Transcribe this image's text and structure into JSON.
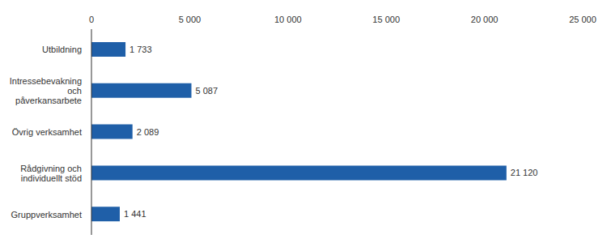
{
  "chart_data": {
    "type": "bar",
    "orientation": "horizontal",
    "categories": [
      "Utbildning",
      "Intressebevakning och påverkansarbete",
      "Övrig verksamhet",
      "Rådgivning och individuellt stöd",
      "Gruppverksamhet"
    ],
    "values": [
      1733,
      5087,
      2089,
      21120,
      1441
    ],
    "value_labels": [
      "1 733",
      "5 087",
      "2 089",
      "21 120",
      "1 441"
    ],
    "data_labels": true,
    "color": "#1f5fa8",
    "xlim": [
      0,
      25000
    ],
    "xticks": [
      0,
      {
        "value": 5000,
        "label": "5 000"
      },
      {
        "value": 10000,
        "label": "10 000"
      },
      {
        "value": 15000,
        "label": "15 000"
      },
      {
        "value": 20000,
        "label": "20 000"
      },
      {
        "value": 25000,
        "label": "25 000"
      }
    ],
    "grid": false
  }
}
